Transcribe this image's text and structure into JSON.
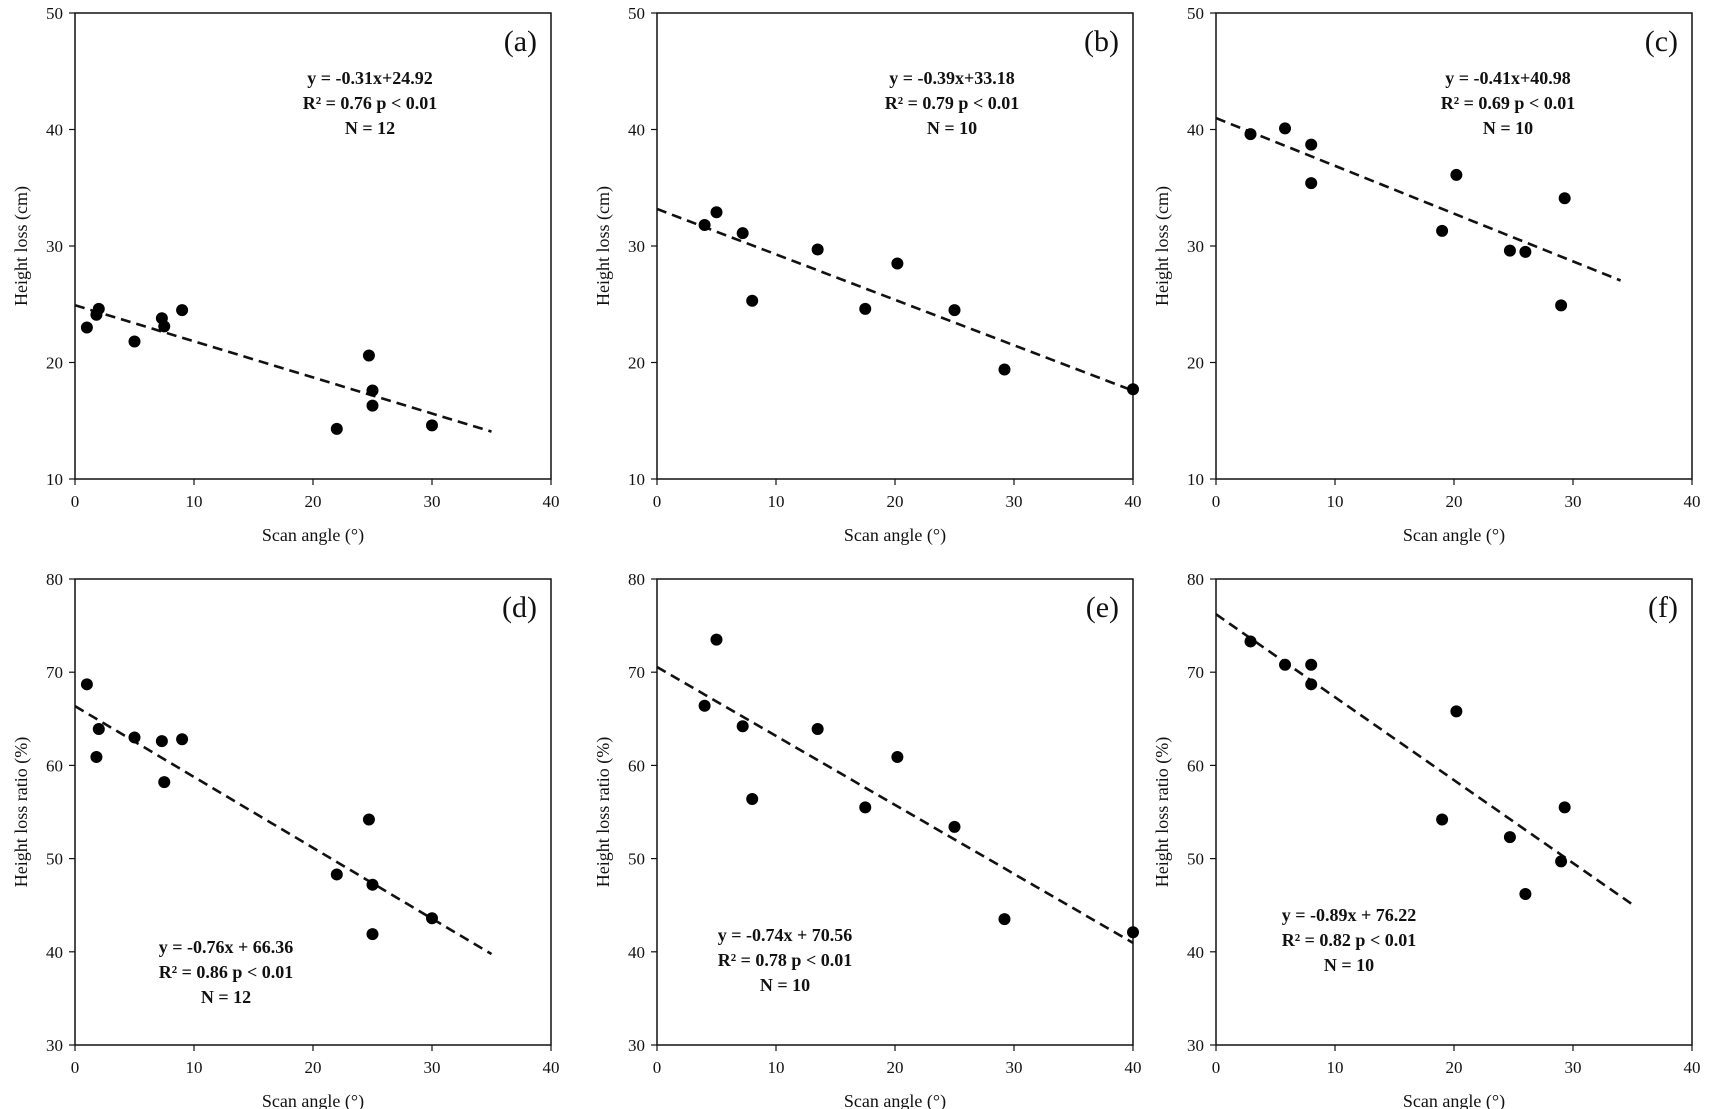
{
  "figure": {
    "aria_label": "Six scatter plots of height loss versus scan angle"
  },
  "chart_data": [
    {
      "type": "scatter",
      "panel": "(a)",
      "xlabel": "Scan angle (°)",
      "ylabel": "Height loss (cm)",
      "xlim": [
        0,
        40
      ],
      "ylim": [
        10,
        50
      ],
      "xticks": [
        "0",
        "10",
        "20",
        "30",
        "40"
      ],
      "yticks": [
        "10",
        "20",
        "30",
        "40",
        "50"
      ],
      "points": [
        [
          1,
          23.0
        ],
        [
          1.8,
          24.1
        ],
        [
          2,
          24.6
        ],
        [
          5,
          21.8
        ],
        [
          7.3,
          23.8
        ],
        [
          7.5,
          23.1
        ],
        [
          9,
          24.5
        ],
        [
          22,
          14.3
        ],
        [
          24.7,
          20.6
        ],
        [
          25,
          17.6
        ],
        [
          25,
          16.3
        ],
        [
          30,
          14.6
        ]
      ],
      "trend": {
        "slope": -0.31,
        "intercept": 24.92,
        "x_range": [
          0,
          35
        ]
      },
      "annotation": [
        "y = -0.31x+24.92",
        "R² = 0.76  p < 0.01",
        "N = 12"
      ]
    },
    {
      "type": "scatter",
      "panel": "(b)",
      "xlabel": "Scan angle (°)",
      "ylabel": "Height loss (cm)",
      "xlim": [
        0,
        40
      ],
      "ylim": [
        10,
        50
      ],
      "xticks": [
        "0",
        "10",
        "20",
        "30",
        "40"
      ],
      "yticks": [
        "10",
        "20",
        "30",
        "40",
        "50"
      ],
      "points": [
        [
          4,
          31.8
        ],
        [
          5,
          32.9
        ],
        [
          7.2,
          31.1
        ],
        [
          8,
          25.3
        ],
        [
          13.5,
          29.7
        ],
        [
          17.5,
          24.6
        ],
        [
          20.2,
          28.5
        ],
        [
          25,
          24.5
        ],
        [
          29.2,
          19.4
        ],
        [
          40,
          17.7
        ]
      ],
      "trend": {
        "slope": -0.39,
        "intercept": 33.18,
        "x_range": [
          0,
          40
        ]
      },
      "annotation": [
        "y = -0.39x+33.18",
        "R² = 0.79  p < 0.01",
        "N = 10"
      ]
    },
    {
      "type": "scatter",
      "panel": "(c)",
      "xlabel": "Scan angle (°)",
      "ylabel": "Height loss (cm)",
      "xlim": [
        0,
        40
      ],
      "ylim": [
        10,
        50
      ],
      "xticks": [
        "0",
        "10",
        "20",
        "30",
        "40"
      ],
      "yticks": [
        "10",
        "20",
        "30",
        "40",
        "50"
      ],
      "points": [
        [
          2.9,
          39.6
        ],
        [
          5.8,
          40.1
        ],
        [
          8,
          38.7
        ],
        [
          8,
          35.4
        ],
        [
          19,
          31.3
        ],
        [
          20.2,
          36.1
        ],
        [
          24.7,
          29.6
        ],
        [
          26,
          29.5
        ],
        [
          29,
          24.9
        ],
        [
          29.3,
          34.1
        ]
      ],
      "trend": {
        "slope": -0.41,
        "intercept": 40.98,
        "x_range": [
          0,
          34
        ]
      },
      "annotation": [
        "y = -0.41x+40.98",
        "R² = 0.69  p < 0.01",
        "N = 10"
      ]
    },
    {
      "type": "scatter",
      "panel": "(d)",
      "xlabel": "Scan angle (°)",
      "ylabel": "Height loss ratio (%)",
      "xlim": [
        0,
        40
      ],
      "ylim": [
        30,
        80
      ],
      "xticks": [
        "0",
        "10",
        "20",
        "30",
        "40"
      ],
      "yticks": [
        "30",
        "40",
        "50",
        "60",
        "70",
        "80"
      ],
      "points": [
        [
          1,
          68.7
        ],
        [
          1.8,
          60.9
        ],
        [
          2,
          63.9
        ],
        [
          5,
          63.0
        ],
        [
          7.3,
          62.6
        ],
        [
          7.5,
          58.2
        ],
        [
          9,
          62.8
        ],
        [
          22,
          48.3
        ],
        [
          24.7,
          54.2
        ],
        [
          25,
          47.2
        ],
        [
          25,
          41.9
        ],
        [
          30,
          43.6
        ]
      ],
      "trend": {
        "slope": -0.76,
        "intercept": 66.36,
        "x_range": [
          0,
          35
        ]
      },
      "annotation": [
        "y = -0.76x + 66.36",
        "R² = 0.86   p < 0.01",
        "N = 12"
      ]
    },
    {
      "type": "scatter",
      "panel": "(e)",
      "xlabel": "Scan angle (°)",
      "ylabel": "Height loss ratio (%)",
      "xlim": [
        0,
        40
      ],
      "ylim": [
        30,
        80
      ],
      "xticks": [
        "0",
        "10",
        "20",
        "30",
        "40"
      ],
      "yticks": [
        "30",
        "40",
        "50",
        "60",
        "70",
        "80"
      ],
      "points": [
        [
          4,
          66.4
        ],
        [
          5,
          73.5
        ],
        [
          7.2,
          64.2
        ],
        [
          8,
          56.4
        ],
        [
          13.5,
          63.9
        ],
        [
          17.5,
          55.5
        ],
        [
          20.2,
          60.9
        ],
        [
          25,
          53.4
        ],
        [
          29.2,
          43.5
        ],
        [
          40,
          42.1
        ]
      ],
      "trend": {
        "slope": -0.74,
        "intercept": 70.56,
        "x_range": [
          0,
          40
        ]
      },
      "annotation": [
        "y = -0.74x + 70.56",
        "R² = 0.78   p < 0.01",
        "N = 10"
      ]
    },
    {
      "type": "scatter",
      "panel": "(f)",
      "xlabel": "Scan angle (°)",
      "ylabel": "Height loss ratio (%)",
      "xlim": [
        0,
        40
      ],
      "ylim": [
        30,
        80
      ],
      "xticks": [
        "0",
        "10",
        "20",
        "30",
        "40"
      ],
      "yticks": [
        "30",
        "40",
        "50",
        "60",
        "70",
        "80"
      ],
      "points": [
        [
          2.9,
          73.3
        ],
        [
          5.8,
          70.8
        ],
        [
          8,
          70.8
        ],
        [
          8,
          68.7
        ],
        [
          19,
          54.2
        ],
        [
          20.2,
          65.8
        ],
        [
          24.7,
          52.3
        ],
        [
          26,
          46.2
        ],
        [
          29,
          49.7
        ],
        [
          29.3,
          55.5
        ]
      ],
      "trend": {
        "slope": -0.89,
        "intercept": 76.22,
        "x_range": [
          0,
          35
        ]
      },
      "annotation": [
        "y = -0.89x + 76.22",
        "R² = 0.82   p < 0.01",
        "N = 10"
      ]
    }
  ]
}
